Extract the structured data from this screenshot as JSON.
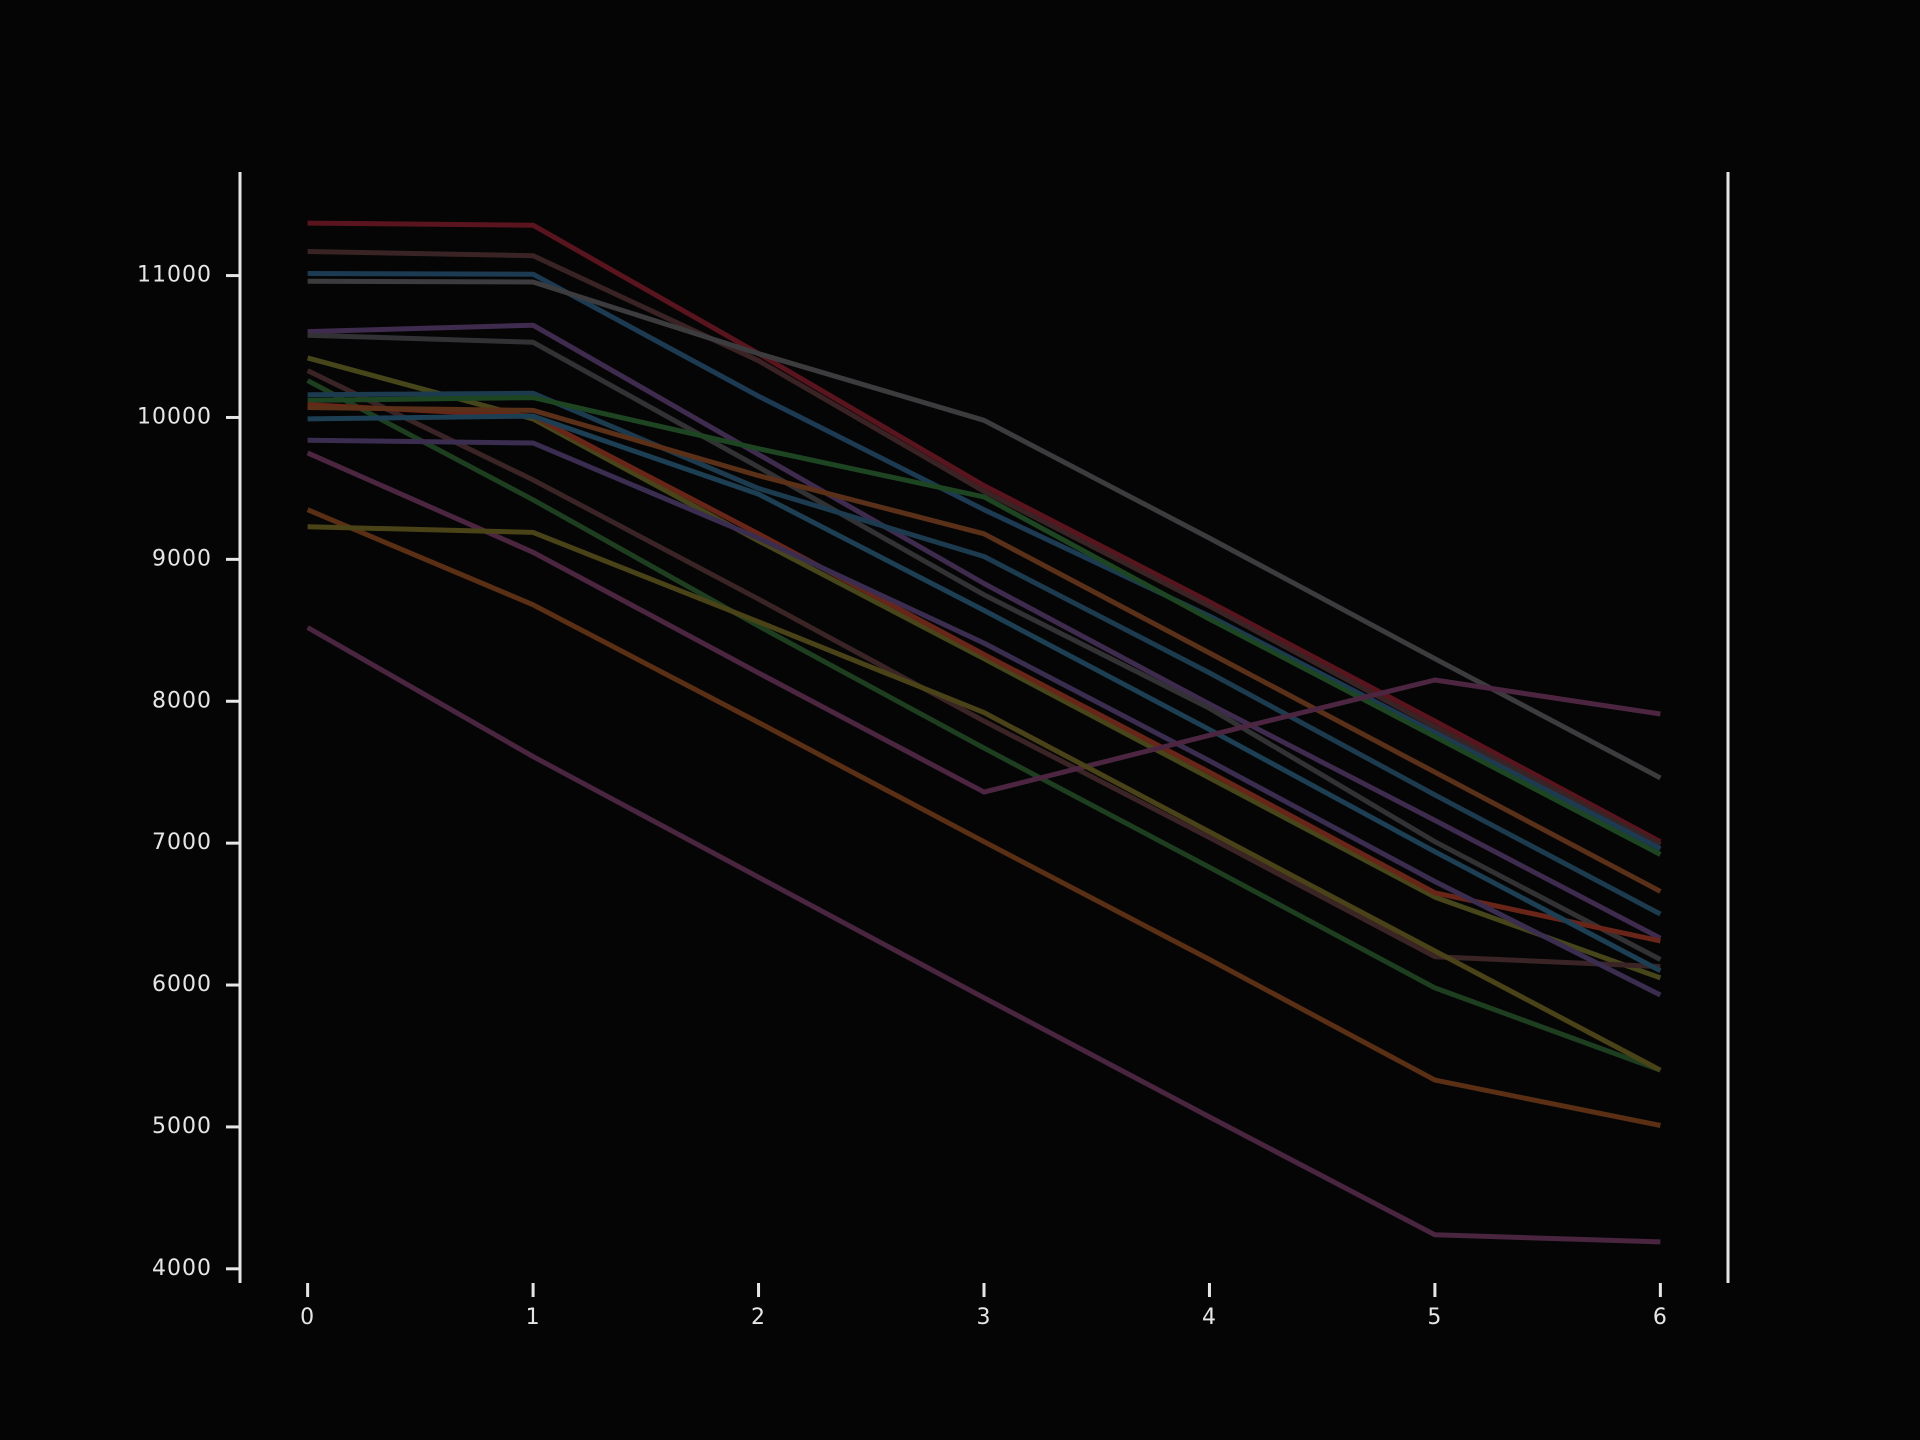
{
  "chart_data": {
    "type": "line",
    "title": "",
    "xlabel": "",
    "ylabel": "",
    "x": [
      0,
      1,
      2,
      3,
      4,
      5,
      6
    ],
    "xlim": [
      -0.3,
      6.3
    ],
    "ylim": [
      3900,
      11730
    ],
    "x_ticks": [
      "0",
      "1",
      "2",
      "3",
      "4",
      "5",
      "6"
    ],
    "y_ticks": [
      "4000",
      "5000",
      "6000",
      "7000",
      "8000",
      "9000",
      "10000",
      "11000"
    ],
    "grid": false,
    "legend": "none",
    "background": "#050505",
    "axis_color": "#e6e6e6",
    "series": [
      {
        "color": "#5a141e",
        "values": [
          11370,
          11355,
          10450,
          9520,
          8700,
          7860,
          7010
        ]
      },
      {
        "color": "#3a2324",
        "values": [
          11170,
          11140,
          10400,
          9480,
          8670,
          7820,
          6990
        ]
      },
      {
        "color": "#1c3a52",
        "values": [
          11015,
          11010,
          10150,
          9350,
          8600,
          7780,
          6960
        ]
      },
      {
        "color": "#3c3c3e",
        "values": [
          10960,
          10955,
          10450,
          9980,
          9150,
          8300,
          7460
        ]
      },
      {
        "color": "#3e2b4e",
        "values": [
          10605,
          10650,
          9740,
          8830,
          7980,
          7160,
          6330
        ]
      },
      {
        "color": "#323234",
        "values": [
          10580,
          10530,
          9650,
          8750,
          7950,
          7010,
          6180
        ]
      },
      {
        "color": "#46461a",
        "values": [
          10420,
          9990,
          9130,
          8300,
          7460,
          6620,
          6050
        ]
      },
      {
        "color": "#3a2426",
        "values": [
          10330,
          9560,
          8720,
          7860,
          7040,
          6200,
          6130
        ]
      },
      {
        "color": "#1d3f1f",
        "values": [
          10260,
          9420,
          8530,
          7670,
          6830,
          5980,
          5400
        ]
      },
      {
        "color": "#1c3b4e",
        "values": [
          10160,
          10170,
          9500,
          9020,
          8200,
          7340,
          6500
        ]
      },
      {
        "color": "#1d4522",
        "values": [
          10120,
          10140,
          9780,
          9440,
          8580,
          7750,
          6920
        ]
      },
      {
        "color": "#6a2519",
        "values": [
          10090,
          10010,
          9180,
          8330,
          7500,
          6650,
          6310
        ]
      },
      {
        "color": "#5a3018",
        "values": [
          10070,
          10050,
          9590,
          9180,
          8340,
          7500,
          6660
        ]
      },
      {
        "color": "#1c3f54",
        "values": [
          9990,
          10010,
          9460,
          8640,
          7800,
          6940,
          6100
        ]
      },
      {
        "color": "#3b2d50",
        "values": [
          9840,
          9820,
          9150,
          8410,
          7580,
          6730,
          5930
        ]
      },
      {
        "color": "#4c2640",
        "values": [
          9750,
          9050,
          8200,
          7360,
          7760,
          8150,
          7910
        ]
      },
      {
        "color": "#5a2f14",
        "values": [
          9350,
          8680,
          7850,
          7010,
          6180,
          5330,
          5010
        ]
      },
      {
        "color": "#4a4318",
        "values": [
          9230,
          9190,
          8560,
          7920,
          7080,
          6240,
          5400
        ]
      },
      {
        "color": "#4a2540",
        "values": [
          8520,
          7610,
          6760,
          5910,
          5070,
          4240,
          4190
        ]
      }
    ]
  }
}
